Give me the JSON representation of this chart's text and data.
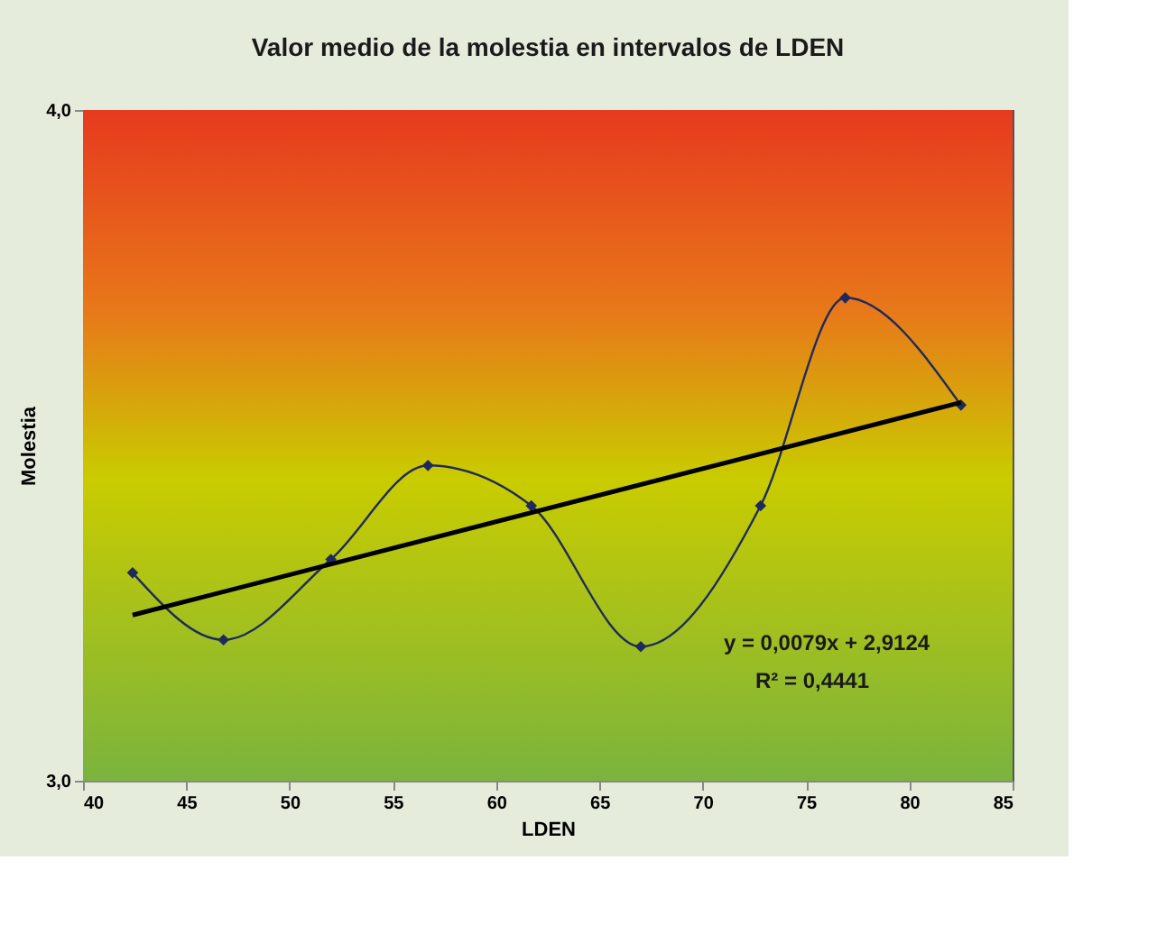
{
  "chart_data": {
    "type": "line",
    "title": "Valor medio de la molestia en intervalos de LDEN",
    "xlabel": "LDEN",
    "ylabel": "Molestia",
    "x": [
      42.4,
      46.8,
      52.0,
      56.7,
      61.7,
      67.0,
      72.8,
      76.9,
      82.5
    ],
    "series": [
      {
        "type": "line",
        "color": "#1f2a5c",
        "marker": "diamond",
        "values": [
          3.31,
          3.21,
          3.33,
          3.47,
          3.41,
          3.2,
          3.41,
          3.72,
          3.56
        ]
      },
      {
        "type": "line",
        "color": "#000000",
        "marker": "none",
        "x": [
          42.4,
          82.5
        ],
        "values": [
          3.247,
          3.564
        ]
      }
    ],
    "xlim": [
      40,
      85
    ],
    "xticks": [
      40,
      45,
      50,
      55,
      60,
      65,
      70,
      75,
      80,
      85
    ],
    "ylim": [
      3,
      4
    ],
    "yticks": [
      {
        "value": 3,
        "label": "3,0"
      },
      {
        "value": 4,
        "label": "4,0"
      }
    ],
    "annotations": [
      "y = 0,0079x + 2,9124",
      "R² = 0,4441"
    ],
    "grid": false
  }
}
